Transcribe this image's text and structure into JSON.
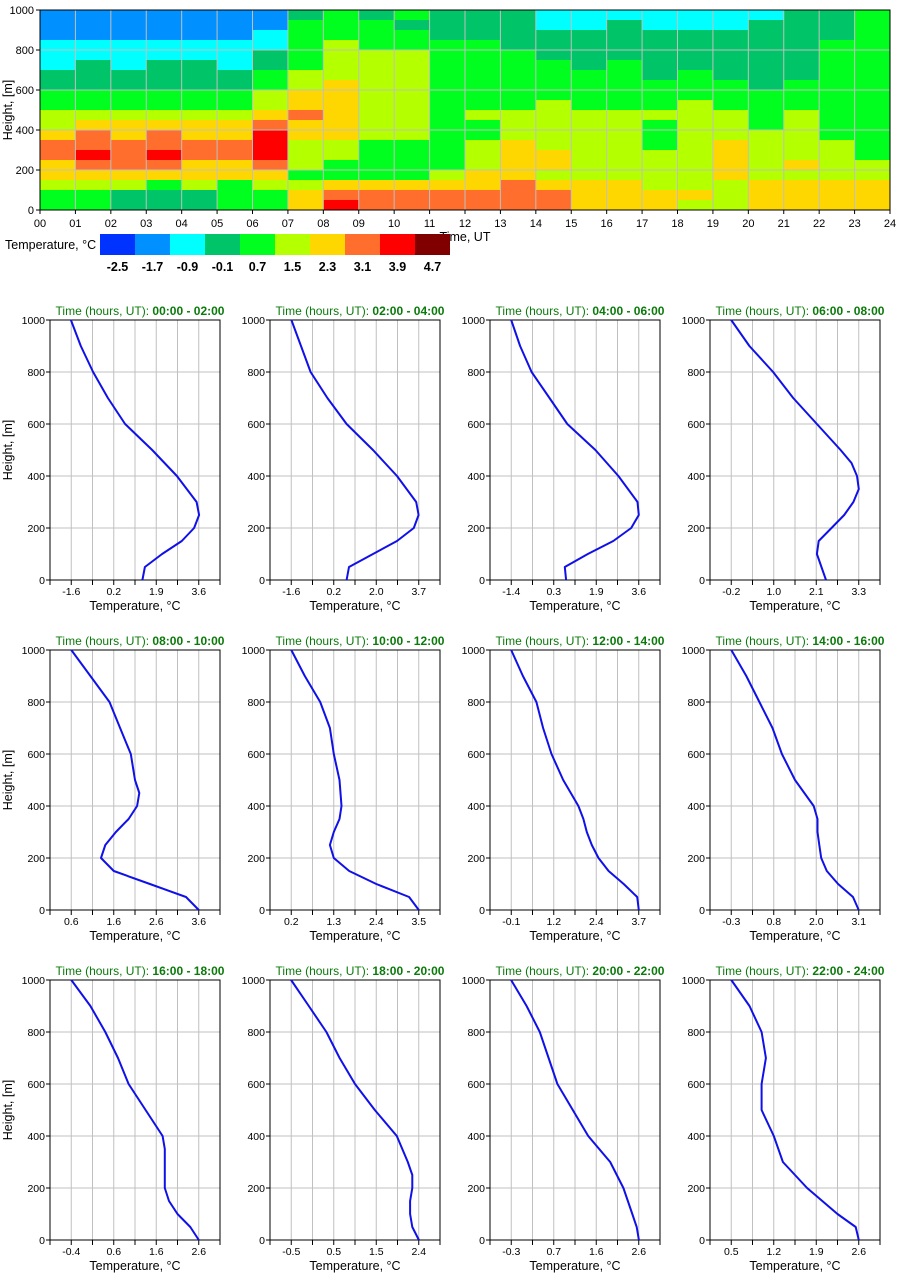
{
  "colors": {
    "grid": "#c0c0c0",
    "line": "#1010e8",
    "title": "#0a7a0a",
    "axis": "#000000"
  },
  "chart_data": [
    {
      "type": "heatmap",
      "xlabel": "Time, UT",
      "ylabel": "Height, [m]",
      "xlim": [
        0,
        24
      ],
      "ylim": [
        0,
        1000
      ],
      "xticks": [
        "00",
        "01",
        "02",
        "03",
        "04",
        "05",
        "06",
        "07",
        "08",
        "09",
        "10",
        "11",
        "12",
        "13",
        "14",
        "15",
        "16",
        "17",
        "18",
        "19",
        "20",
        "21",
        "22",
        "23",
        "24"
      ],
      "yticks": [
        0,
        200,
        400,
        600,
        800,
        1000
      ],
      "grid": true,
      "colorbar": {
        "label": "Temperature, °C",
        "values": [
          "-2.5",
          "-1.7",
          "-0.9",
          "-0.1",
          "0.7",
          "1.5",
          "2.3",
          "3.1",
          "3.9",
          "4.7"
        ],
        "colors": [
          "#0033ff",
          "#0090ff",
          "#00ffff",
          "#00c468",
          "#00ff1e",
          "#b4ff00",
          "#ffd700",
          "#ff6e2c",
          "#ff0000",
          "#800000"
        ]
      },
      "row_height_m": 50,
      "column_hours": 1,
      "grid_classes_top_to_bottom": [
        "111111134343332222222334",
        "111111144433332232223334",
        "111111244443333333333334",
        "222222245444433333333344",
        "222222345554443333333344",
        "232332345554444343333344",
        "333333455554444443433344",
        "333333456554444444443444",
        "444444566554444444444444",
        "444444566554445444544444",
        "555555676554555555554544",
        "566666766554455554554544",
        "676766866554455554555544",
        "777777855444565554565554",
        "787877855444566555565554",
        "677766754444566555565655",
        "666666644445665555565555",
        "555454556666676665556666",
        "443334467777777666656666",
        "443334468777777666556666"
      ]
    },
    {
      "type": "line",
      "title_prefix": "Time (hours, UT): ",
      "time_range": "00:00 - 02:00",
      "xlabel": "Temperature, °C",
      "ylabel": "Height, [m]",
      "xticks": [
        "-1.6",
        "0.2",
        "1.9",
        "3.6"
      ],
      "xlim": [
        -2.45,
        4.45
      ],
      "ylim": [
        0,
        1000
      ],
      "yticks": [
        0,
        200,
        400,
        600,
        800,
        1000
      ],
      "heights": [
        0,
        50,
        100,
        150,
        200,
        250,
        300,
        400,
        500,
        600,
        700,
        800,
        900,
        1000
      ],
      "temperature": [
        1.3,
        1.4,
        2.1,
        2.9,
        3.4,
        3.6,
        3.5,
        2.7,
        1.7,
        0.6,
        -0.1,
        -0.7,
        -1.2,
        -1.6
      ]
    },
    {
      "type": "line",
      "title_prefix": "Time (hours, UT): ",
      "time_range": "02:00 - 04:00",
      "xlabel": "Temperature, °C",
      "ylabel": "",
      "xticks": [
        "-1.6",
        "0.2",
        "2.0",
        "3.7"
      ],
      "xlim": [
        -2.49,
        4.59
      ],
      "ylim": [
        0,
        1000
      ],
      "yticks": [
        0,
        200,
        400,
        600,
        800,
        1000
      ],
      "heights": [
        0,
        50,
        100,
        150,
        200,
        250,
        300,
        400,
        500,
        600,
        700,
        800,
        900,
        1000
      ],
      "temperature": [
        0.7,
        0.8,
        1.8,
        2.8,
        3.5,
        3.7,
        3.6,
        2.8,
        1.8,
        0.7,
        -0.1,
        -0.8,
        -1.2,
        -1.6
      ]
    },
    {
      "type": "line",
      "title_prefix": "Time (hours, UT): ",
      "time_range": "04:00 - 06:00",
      "xlabel": "Temperature, °C",
      "ylabel": "",
      "xticks": [
        "-1.4",
        "0.3",
        "1.9",
        "3.6"
      ],
      "xlim": [
        -2.23,
        4.43
      ],
      "ylim": [
        0,
        1000
      ],
      "yticks": [
        0,
        200,
        400,
        600,
        800,
        1000
      ],
      "heights": [
        0,
        50,
        100,
        150,
        200,
        250,
        300,
        400,
        500,
        600,
        700,
        800,
        900,
        1000
      ],
      "temperature": [
        0.75,
        0.7,
        1.6,
        2.6,
        3.3,
        3.6,
        3.55,
        2.8,
        1.9,
        0.8,
        0.1,
        -0.6,
        -1.05,
        -1.4
      ]
    },
    {
      "type": "line",
      "title_prefix": "Time (hours, UT): ",
      "time_range": "06:00 - 08:00",
      "xlabel": "Temperature, °C",
      "ylabel": "",
      "xticks": [
        "-0.2",
        "1.0",
        "2.1",
        "3.3"
      ],
      "xlim": [
        -0.78,
        3.88
      ],
      "ylim": [
        0,
        1000
      ],
      "yticks": [
        0,
        200,
        400,
        600,
        800,
        1000
      ],
      "heights": [
        0,
        100,
        150,
        200,
        250,
        300,
        350,
        400,
        450,
        500,
        600,
        700,
        800,
        900,
        1000
      ],
      "temperature": [
        2.4,
        2.15,
        2.2,
        2.55,
        2.9,
        3.15,
        3.3,
        3.25,
        3.1,
        2.8,
        2.15,
        1.5,
        0.95,
        0.3,
        -0.2
      ]
    },
    {
      "type": "line",
      "title_prefix": "Time (hours, UT): ",
      "time_range": "08:00 - 10:00",
      "xlabel": "Temperature, °C",
      "ylabel": "Height, [m]",
      "xticks": [
        "0.6",
        "1.6",
        "2.6",
        "3.6"
      ],
      "xlim": [
        0.1,
        4.1
      ],
      "ylim": [
        0,
        1000
      ],
      "yticks": [
        0,
        200,
        400,
        600,
        800,
        1000
      ],
      "heights": [
        0,
        50,
        100,
        150,
        200,
        250,
        300,
        350,
        400,
        450,
        500,
        600,
        700,
        800,
        900,
        1000
      ],
      "temperature": [
        3.6,
        3.3,
        2.45,
        1.6,
        1.3,
        1.4,
        1.65,
        1.95,
        2.15,
        2.2,
        2.1,
        2.0,
        1.75,
        1.5,
        1.05,
        0.6
      ]
    },
    {
      "type": "line",
      "title_prefix": "Time (hours, UT): ",
      "time_range": "10:00 - 12:00",
      "xlabel": "Temperature, °C",
      "ylabel": "",
      "xticks": [
        "0.2",
        "1.3",
        "2.4",
        "3.5"
      ],
      "xlim": [
        -0.35,
        4.05
      ],
      "ylim": [
        0,
        1000
      ],
      "yticks": [
        0,
        200,
        400,
        600,
        800,
        1000
      ],
      "heights": [
        0,
        50,
        100,
        150,
        200,
        250,
        300,
        350,
        400,
        500,
        600,
        700,
        800,
        900,
        1000
      ],
      "temperature": [
        3.5,
        3.25,
        2.4,
        1.7,
        1.3,
        1.2,
        1.3,
        1.45,
        1.5,
        1.45,
        1.3,
        1.2,
        0.95,
        0.55,
        0.2
      ]
    },
    {
      "type": "line",
      "title_prefix": "Time (hours, UT): ",
      "time_range": "12:00 - 14:00",
      "xlabel": "Temperature, °C",
      "ylabel": "",
      "xticks": [
        "-0.1",
        "1.2",
        "2.4",
        "3.7"
      ],
      "xlim": [
        -0.73,
        4.33
      ],
      "ylim": [
        0,
        1000
      ],
      "yticks": [
        0,
        200,
        400,
        600,
        800,
        1000
      ],
      "heights": [
        0,
        50,
        100,
        150,
        200,
        250,
        300,
        350,
        400,
        500,
        600,
        700,
        800,
        900,
        1000
      ],
      "temperature": [
        3.7,
        3.65,
        3.25,
        2.8,
        2.5,
        2.3,
        2.15,
        2.05,
        1.9,
        1.45,
        1.1,
        0.85,
        0.65,
        0.25,
        -0.1
      ]
    },
    {
      "type": "line",
      "title_prefix": "Time (hours, UT): ",
      "time_range": "14:00 - 16:00",
      "xlabel": "Temperature, °C",
      "ylabel": "",
      "xticks": [
        "-0.3",
        "0.8",
        "2.0",
        "3.1"
      ],
      "xlim": [
        -0.87,
        3.67
      ],
      "ylim": [
        0,
        1000
      ],
      "yticks": [
        0,
        200,
        400,
        600,
        800,
        1000
      ],
      "heights": [
        0,
        50,
        100,
        150,
        200,
        250,
        300,
        350,
        400,
        500,
        600,
        700,
        800,
        900,
        1000
      ],
      "temperature": [
        3.1,
        2.95,
        2.55,
        2.25,
        2.1,
        2.05,
        2.0,
        2.0,
        1.9,
        1.4,
        1.05,
        0.8,
        0.45,
        0.1,
        -0.3
      ]
    },
    {
      "type": "line",
      "title_prefix": "Time (hours, UT): ",
      "time_range": "16:00 - 18:00",
      "xlabel": "Temperature, °C",
      "ylabel": "Height, [m]",
      "xticks": [
        "-0.4",
        "0.6",
        "1.6",
        "2.6"
      ],
      "xlim": [
        -0.9,
        3.1
      ],
      "ylim": [
        0,
        1000
      ],
      "yticks": [
        0,
        200,
        400,
        600,
        800,
        1000
      ],
      "heights": [
        0,
        50,
        100,
        150,
        200,
        250,
        300,
        350,
        400,
        450,
        500,
        600,
        700,
        800,
        900,
        1000
      ],
      "temperature": [
        2.6,
        2.4,
        2.1,
        1.9,
        1.8,
        1.8,
        1.8,
        1.8,
        1.75,
        1.55,
        1.35,
        0.95,
        0.7,
        0.4,
        0.05,
        -0.4
      ]
    },
    {
      "type": "line",
      "title_prefix": "Time (hours, UT): ",
      "time_range": "18:00 - 20:00",
      "xlabel": "Temperature, °C",
      "ylabel": "",
      "xticks": [
        "-0.5",
        "0.5",
        "1.5",
        "2.4"
      ],
      "xlim": [
        -0.98,
        2.88
      ],
      "ylim": [
        0,
        1000
      ],
      "yticks": [
        0,
        200,
        400,
        600,
        800,
        1000
      ],
      "heights": [
        0,
        50,
        100,
        150,
        200,
        250,
        300,
        400,
        500,
        600,
        700,
        800,
        900,
        1000
      ],
      "temperature": [
        2.4,
        2.25,
        2.2,
        2.2,
        2.25,
        2.25,
        2.15,
        1.9,
        1.4,
        0.95,
        0.6,
        0.3,
        -0.1,
        -0.5
      ]
    },
    {
      "type": "line",
      "title_prefix": "Time (hours, UT): ",
      "time_range": "20:00 - 22:00",
      "xlabel": "Temperature, °C",
      "ylabel": "",
      "xticks": [
        "-0.3",
        "0.7",
        "1.6",
        "2.6"
      ],
      "xlim": [
        -0.78,
        3.08
      ],
      "ylim": [
        0,
        1000
      ],
      "yticks": [
        0,
        200,
        400,
        600,
        800,
        1000
      ],
      "heights": [
        0,
        50,
        100,
        200,
        300,
        400,
        500,
        600,
        700,
        800,
        900,
        1000
      ],
      "temperature": [
        2.6,
        2.55,
        2.45,
        2.25,
        1.95,
        1.45,
        1.1,
        0.75,
        0.55,
        0.35,
        0.05,
        -0.3
      ]
    },
    {
      "type": "line",
      "title_prefix": "Time (hours, UT): ",
      "time_range": "22:00 - 24:00",
      "xlabel": "Temperature, °C",
      "ylabel": "",
      "xticks": [
        "0.5",
        "1.2",
        "1.9",
        "2.6"
      ],
      "xlim": [
        0.15,
        2.95
      ],
      "ylim": [
        0,
        1000
      ],
      "yticks": [
        0,
        200,
        400,
        600,
        800,
        1000
      ],
      "heights": [
        0,
        50,
        100,
        150,
        200,
        250,
        300,
        400,
        500,
        600,
        700,
        800,
        900,
        1000
      ],
      "temperature": [
        2.6,
        2.55,
        2.25,
        2.0,
        1.75,
        1.55,
        1.35,
        1.2,
        1.0,
        1.0,
        1.07,
        1.0,
        0.8,
        0.5
      ]
    }
  ]
}
